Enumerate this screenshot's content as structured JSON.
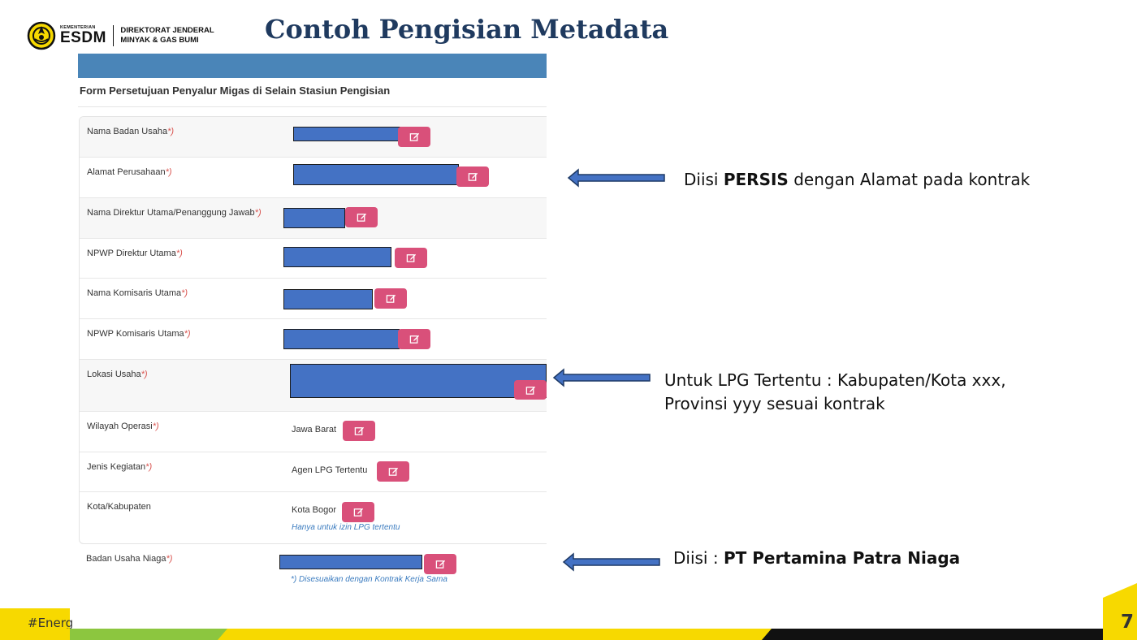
{
  "header": {
    "logo_small": "KEMENTERIAN",
    "logo_big": "ESDM",
    "logo_right_line1": "DIREKTORAT JENDERAL",
    "logo_right_line2": "MINYAK & GAS BUMI",
    "title": "Contoh Pengisian Metadata"
  },
  "form": {
    "title": "Form Persetujuan Penyalur Migas di Selain Stasiun Pengisian",
    "required_marker": "*)",
    "rows": [
      {
        "label": "Nama Badan Usaha",
        "required": true,
        "value": ""
      },
      {
        "label": "Alamat Perusahaan",
        "required": true,
        "value": ""
      },
      {
        "label": "Nama Direktur Utama/Penanggung Jawab",
        "required": true,
        "value": ""
      },
      {
        "label": "NPWP Direktur Utama",
        "required": true,
        "value": ""
      },
      {
        "label": "Nama Komisaris Utama",
        "required": true,
        "value": ""
      },
      {
        "label": "NPWP Komisaris Utama",
        "required": true,
        "value": ""
      },
      {
        "label": "Lokasi Usaha",
        "required": true,
        "value": ""
      },
      {
        "label": "Wilayah Operasi",
        "required": true,
        "value": "Jawa Barat"
      },
      {
        "label": "Jenis Kegiatan",
        "required": true,
        "value": "Agen LPG Tertentu"
      },
      {
        "label": "Kota/Kabupaten",
        "required": false,
        "value": "Kota Bogor",
        "hint": "Hanya untuk izin LPG tertentu"
      }
    ],
    "bottom_field": {
      "label": "Badan Usaha Niaga",
      "required": true
    },
    "bottom_note": "*) Disesuaikan dengan Kontrak Kerja Sama",
    "edit_icon": "edit-icon"
  },
  "callouts": {
    "alamat": {
      "prefix": "Diisi ",
      "bold": "PERSIS",
      "suffix": " dengan Alamat pada kontrak"
    },
    "lokasi": {
      "line1": "Untuk LPG Tertentu : Kabupaten/Kota xxx,",
      "line2": "Provinsi yyy sesuai kontrak"
    },
    "niaga": {
      "prefix": "Diisi : ",
      "bold": "PT Pertamina Patra Niaga"
    }
  },
  "footer": {
    "hashtag": "#Energ",
    "page_number": "7"
  },
  "colors": {
    "title": "#1f3a5f",
    "form_bar": "#4a85b8",
    "redaction": "#4472c4",
    "edit_button": "#d9507a",
    "required": "#d9534f",
    "hint": "#3a7bbf",
    "footer_yellow": "#f7d900"
  }
}
